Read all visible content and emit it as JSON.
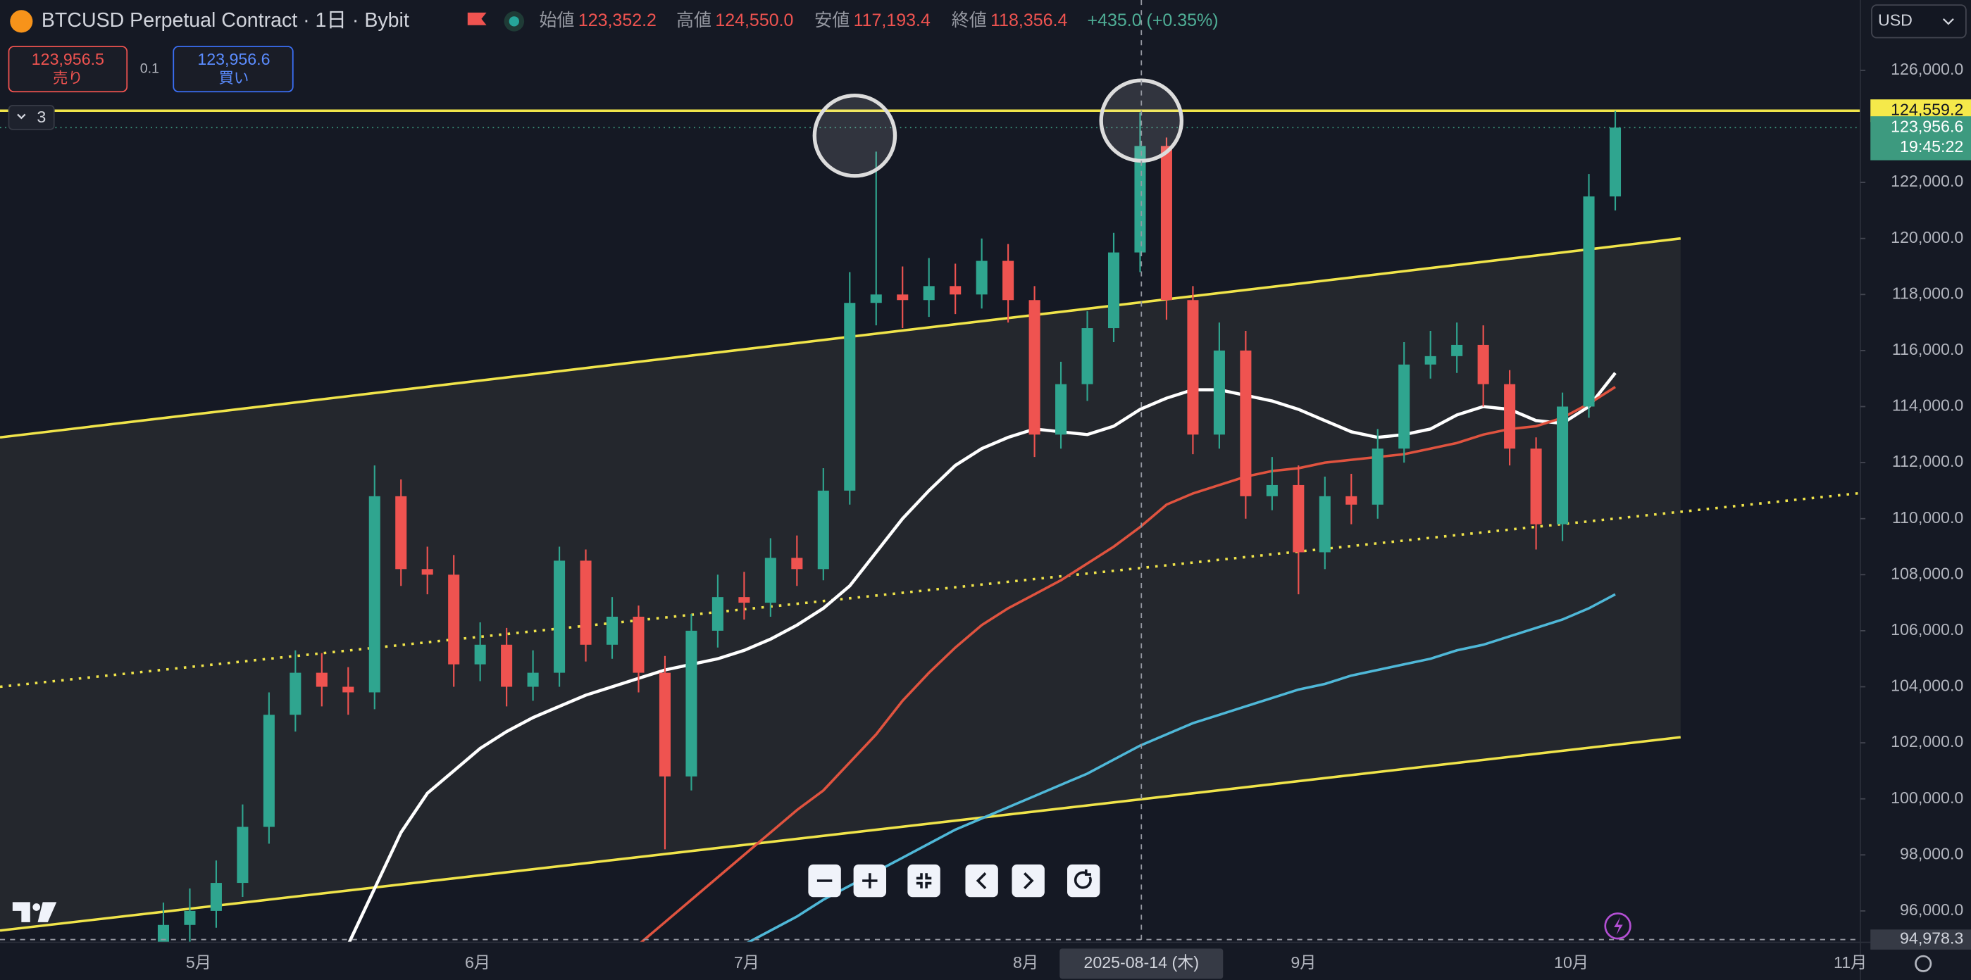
{
  "header": {
    "symbol": "BTCUSD Perpetual Contract · 1日 · Bybit",
    "open_label": "始値",
    "open": "123,352.2",
    "high_label": "高値",
    "high": "124,550.0",
    "low_label": "安値",
    "low": "117,193.4",
    "close_label": "終値",
    "close": "118,356.4",
    "change": "+435.0 (+0.35%)"
  },
  "trade": {
    "sell_price": "123,956.5",
    "sell_label": "売り",
    "quantity": "0.1",
    "buy_price": "123,956.6",
    "buy_label": "買い"
  },
  "indicators_count": "3",
  "currency": "USD",
  "chart_data": {
    "type": "candlestick",
    "up_color": "#2fa58f",
    "down_color": "#ef5350",
    "open": [
      94700,
      95500,
      96000,
      97000,
      99000,
      103000,
      104500,
      104000,
      103800,
      110800,
      108200,
      108000,
      104800,
      105500,
      104000,
      104500,
      108500,
      105500,
      106500,
      104500,
      100800,
      106000,
      107200,
      107000,
      108600,
      108200,
      111000,
      117700,
      118000,
      117800,
      118300,
      118000,
      119200,
      117800,
      113000,
      114800,
      116800,
      119500,
      123300,
      117800,
      113000,
      116000,
      110800,
      111200,
      108800,
      110800,
      110500,
      112500,
      115500,
      115800,
      116200,
      114800,
      112500,
      109800,
      114000,
      121500
    ],
    "high": [
      96300,
      96800,
      97800,
      99800,
      103800,
      105300,
      105200,
      104700,
      111900,
      111400,
      109000,
      108700,
      106300,
      106100,
      105300,
      109000,
      108900,
      107200,
      106900,
      105100,
      106600,
      108000,
      108100,
      109300,
      109400,
      111800,
      118800,
      123100,
      119000,
      119300,
      119100,
      120000,
      119800,
      118300,
      115600,
      117400,
      120200,
      124500,
      123600,
      118300,
      117000,
      116700,
      112200,
      111900,
      111500,
      111600,
      113200,
      116300,
      116700,
      117000,
      116900,
      115300,
      112900,
      114500,
      122300,
      124550
    ],
    "low": [
      94000,
      94900,
      95400,
      96500,
      98400,
      102400,
      103300,
      103000,
      103200,
      107600,
      107300,
      104000,
      104200,
      103300,
      103500,
      104000,
      104900,
      105000,
      103800,
      98200,
      100300,
      105400,
      106400,
      106500,
      107600,
      107800,
      110500,
      116900,
      116800,
      117200,
      117300,
      117500,
      117000,
      112200,
      112500,
      114200,
      116300,
      118800,
      117100,
      112300,
      112500,
      110000,
      110300,
      107300,
      108200,
      109800,
      110000,
      112000,
      115000,
      115200,
      114000,
      111900,
      108900,
      109200,
      113600,
      121000
    ],
    "close": [
      95500,
      96000,
      97000,
      99000,
      103000,
      104500,
      104000,
      103800,
      110800,
      108200,
      108000,
      104800,
      105500,
      104000,
      104500,
      108500,
      105500,
      106500,
      104500,
      100800,
      106000,
      107200,
      107000,
      108600,
      108200,
      111000,
      117700,
      118000,
      117800,
      118300,
      118000,
      119200,
      117800,
      113000,
      114800,
      116800,
      119500,
      123300,
      117800,
      113000,
      116000,
      110800,
      111200,
      108800,
      110800,
      110500,
      112500,
      115500,
      115800,
      116200,
      114800,
      112500,
      109800,
      114000,
      121500,
      123956.6
    ],
    "series": [
      {
        "color": "#ffffff",
        "values": [
          null,
          null,
          null,
          null,
          null,
          null,
          null,
          94800,
          96800,
          98800,
          100200,
          101000,
          101800,
          102400,
          102900,
          103300,
          103700,
          104000,
          104300,
          104600,
          104800,
          105000,
          105300,
          105700,
          106200,
          106800,
          107600,
          108800,
          110000,
          111000,
          111900,
          112500,
          112900,
          113200,
          113100,
          113000,
          113300,
          113900,
          114300,
          114600,
          114600,
          114400,
          114200,
          113900,
          113500,
          113100,
          112900,
          113000,
          113200,
          113700,
          114000,
          113900,
          113500,
          113400,
          114000,
          115200
        ]
      },
      {
        "color": "#e0533f",
        "values": [
          null,
          null,
          null,
          null,
          null,
          null,
          null,
          null,
          null,
          null,
          null,
          null,
          null,
          null,
          null,
          null,
          null,
          null,
          94800,
          95600,
          96400,
          97200,
          98000,
          98800,
          99600,
          100300,
          101300,
          102300,
          103500,
          104500,
          105400,
          106200,
          106800,
          107300,
          107800,
          108400,
          109000,
          109700,
          110500,
          110900,
          111200,
          111500,
          111700,
          111800,
          112000,
          112100,
          112200,
          112300,
          112500,
          112700,
          113000,
          113200,
          113300,
          113600,
          114100,
          114700
        ]
      },
      {
        "color": "#4fb8d8",
        "values": [
          null,
          null,
          null,
          null,
          null,
          null,
          null,
          null,
          null,
          null,
          null,
          null,
          null,
          null,
          null,
          null,
          null,
          null,
          null,
          null,
          null,
          null,
          94800,
          95300,
          95800,
          96400,
          96900,
          97400,
          97900,
          98400,
          98900,
          99300,
          99700,
          100100,
          100500,
          100900,
          101400,
          101900,
          102300,
          102700,
          103000,
          103300,
          103600,
          103900,
          104100,
          104400,
          104600,
          104800,
          105000,
          105300,
          105500,
          105800,
          106100,
          106400,
          106800,
          107300
        ]
      }
    ],
    "channel": {
      "color": "#f0e44a",
      "upper": [
        112900,
        120000
      ],
      "middle": [
        104000,
        111100
      ],
      "lower": [
        95300,
        102200
      ]
    },
    "level": {
      "value": 124559.2,
      "label": "124,559.2"
    },
    "last_price": {
      "value": 123956.6,
      "label": "123,956.6"
    },
    "countdown": "19:45:22",
    "crosshair": {
      "date": "2025-08-14 (木)",
      "price": {
        "value": 94978.3,
        "label": "94,978.3"
      }
    },
    "month_labels": [
      "5月",
      "6月",
      "7月",
      "8月",
      "9月",
      "10月",
      "11月"
    ],
    "ylim": [
      94880,
      128510
    ],
    "yticks": [
      {
        "value": 96000,
        "label": "96,000.0"
      },
      {
        "value": 98000,
        "label": "98,000.0"
      },
      {
        "value": 100000,
        "label": "100,000.0"
      },
      {
        "value": 102000,
        "label": "102,000.0"
      },
      {
        "value": 104000,
        "label": "104,000.0"
      },
      {
        "value": 106000,
        "label": "106,000.0"
      },
      {
        "value": 108000,
        "label": "108,000.0"
      },
      {
        "value": 110000,
        "label": "110,000.0"
      },
      {
        "value": 112000,
        "label": "112,000.0"
      },
      {
        "value": 114000,
        "label": "114,000.0"
      },
      {
        "value": 116000,
        "label": "116,000.0"
      },
      {
        "value": 118000,
        "label": "118,000.0"
      },
      {
        "value": 120000,
        "label": "120,000.0"
      },
      {
        "value": 122000,
        "label": "122,000.0"
      },
      {
        "value": 126000,
        "label": "126,000.0"
      }
    ]
  }
}
